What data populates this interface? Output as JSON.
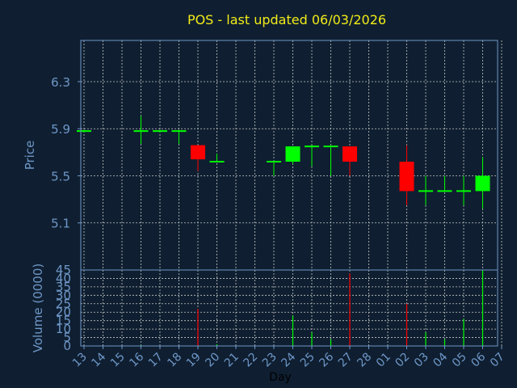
{
  "colors": {
    "background": "#0f1f31",
    "title": "#f2ec18",
    "axis_text": "#6f97c8",
    "frame": "#6f97c8",
    "grid": "#c8c8c8",
    "up": "#00ff00",
    "down": "#ff0000",
    "xlabel": "#000000"
  },
  "chart_data": [
    {
      "type": "candlestick",
      "title": "POS - last updated 06/03/2026",
      "ylabel": "Price",
      "ylim": [
        4.7,
        6.65
      ],
      "yticks": [
        "5.1",
        "5.5",
        "5.9",
        "6.3"
      ],
      "grid": true,
      "x": [
        "13",
        "14",
        "15",
        "16",
        "17",
        "18",
        "19",
        "20",
        "21",
        "22",
        "23",
        "24",
        "25",
        "26",
        "27",
        "28",
        "01",
        "02",
        "03",
        "04",
        "05",
        "06",
        "07"
      ],
      "candles": [
        {
          "x": "13",
          "open": 5.88,
          "high": 5.89,
          "low": 5.87,
          "close": 5.88
        },
        {
          "x": "16",
          "open": 5.88,
          "high": 6.01,
          "low": 5.77,
          "close": 5.88
        },
        {
          "x": "17",
          "open": 5.88,
          "high": 5.89,
          "low": 5.87,
          "close": 5.88
        },
        {
          "x": "18",
          "open": 5.88,
          "high": 5.89,
          "low": 5.77,
          "close": 5.88
        },
        {
          "x": "19",
          "open": 5.76,
          "high": 5.76,
          "low": 5.54,
          "close": 5.64
        },
        {
          "x": "20",
          "open": 5.62,
          "high": 5.69,
          "low": 5.62,
          "close": 5.62
        },
        {
          "x": "23",
          "open": 5.62,
          "high": 5.62,
          "low": 5.5,
          "close": 5.62
        },
        {
          "x": "24",
          "open": 5.62,
          "high": 5.75,
          "low": 5.6,
          "close": 5.75
        },
        {
          "x": "25",
          "open": 5.75,
          "high": 5.76,
          "low": 5.58,
          "close": 5.75
        },
        {
          "x": "26",
          "open": 5.75,
          "high": 5.76,
          "low": 5.5,
          "close": 5.75
        },
        {
          "x": "27",
          "open": 5.75,
          "high": 5.75,
          "low": 5.5,
          "close": 5.62
        },
        {
          "x": "02",
          "open": 5.62,
          "high": 5.76,
          "low": 5.25,
          "close": 5.37
        },
        {
          "x": "03",
          "open": 5.37,
          "high": 5.5,
          "low": 5.25,
          "close": 5.37
        },
        {
          "x": "04",
          "open": 5.37,
          "high": 5.5,
          "low": 5.37,
          "close": 5.37
        },
        {
          "x": "05",
          "open": 5.37,
          "high": 5.5,
          "low": 5.25,
          "close": 5.37
        },
        {
          "x": "06",
          "open": 5.37,
          "high": 5.66,
          "low": 5.22,
          "close": 5.5
        }
      ]
    },
    {
      "type": "bar",
      "ylabel": "Volume (0000)",
      "xlabel": "Day",
      "ylim": [
        0,
        45
      ],
      "yticks": [
        "0",
        "5",
        "10",
        "15",
        "20",
        "25",
        "30",
        "35",
        "40",
        "45"
      ],
      "categories": [
        "13",
        "14",
        "15",
        "16",
        "17",
        "18",
        "19",
        "20",
        "21",
        "22",
        "23",
        "24",
        "25",
        "26",
        "27",
        "28",
        "01",
        "02",
        "03",
        "04",
        "05",
        "06",
        "07"
      ],
      "values": [
        0,
        0,
        0,
        0.5,
        0,
        0,
        22,
        1,
        0,
        0,
        0,
        18,
        8,
        4,
        43,
        0,
        0,
        25,
        8,
        4,
        16,
        45,
        0
      ],
      "bar_colors": [
        "up",
        "up",
        "up",
        "up",
        "up",
        "up",
        "down",
        "up",
        "up",
        "up",
        "up",
        "up",
        "up",
        "up",
        "down",
        "up",
        "up",
        "down",
        "up",
        "up",
        "up",
        "up",
        "up"
      ]
    }
  ]
}
